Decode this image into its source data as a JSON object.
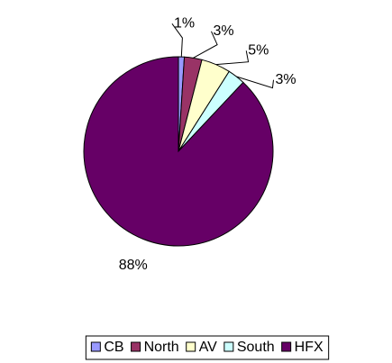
{
  "chart_data": {
    "type": "pie",
    "categories": [
      "CB",
      "North",
      "AV",
      "South",
      "HFX"
    ],
    "values": [
      1,
      3,
      5,
      3,
      88
    ],
    "value_labels": [
      "1%",
      "3%",
      "5%",
      "3%",
      "88%"
    ],
    "colors": [
      "#9999ff",
      "#993366",
      "#ffffcc",
      "#ccffff",
      "#660066"
    ],
    "legend": "bottom"
  }
}
